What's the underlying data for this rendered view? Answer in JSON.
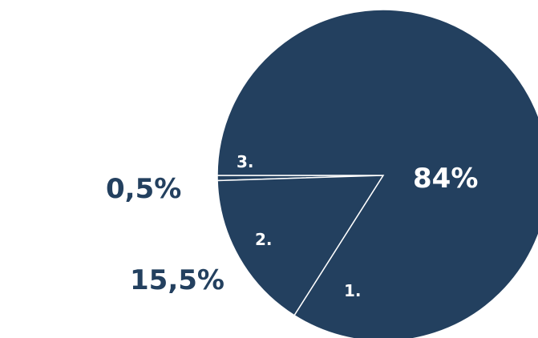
{
  "colors": {
    "slice": "#23405f",
    "separator": "#ffffff",
    "outside_text": "#23405f",
    "inside_text": "#ffffff",
    "background": "#ffffff"
  },
  "chart_data": {
    "type": "pie",
    "start_direction": "west",
    "clockwise": false,
    "slices": [
      {
        "id": "1",
        "label": "1.",
        "value_text": "84%",
        "value": 84.0
      },
      {
        "id": "2",
        "label": "2.",
        "value_text": "15,5%",
        "value": 15.5
      },
      {
        "id": "3",
        "label": "3.",
        "value_text": "0,5%",
        "value": 0.5
      }
    ]
  }
}
